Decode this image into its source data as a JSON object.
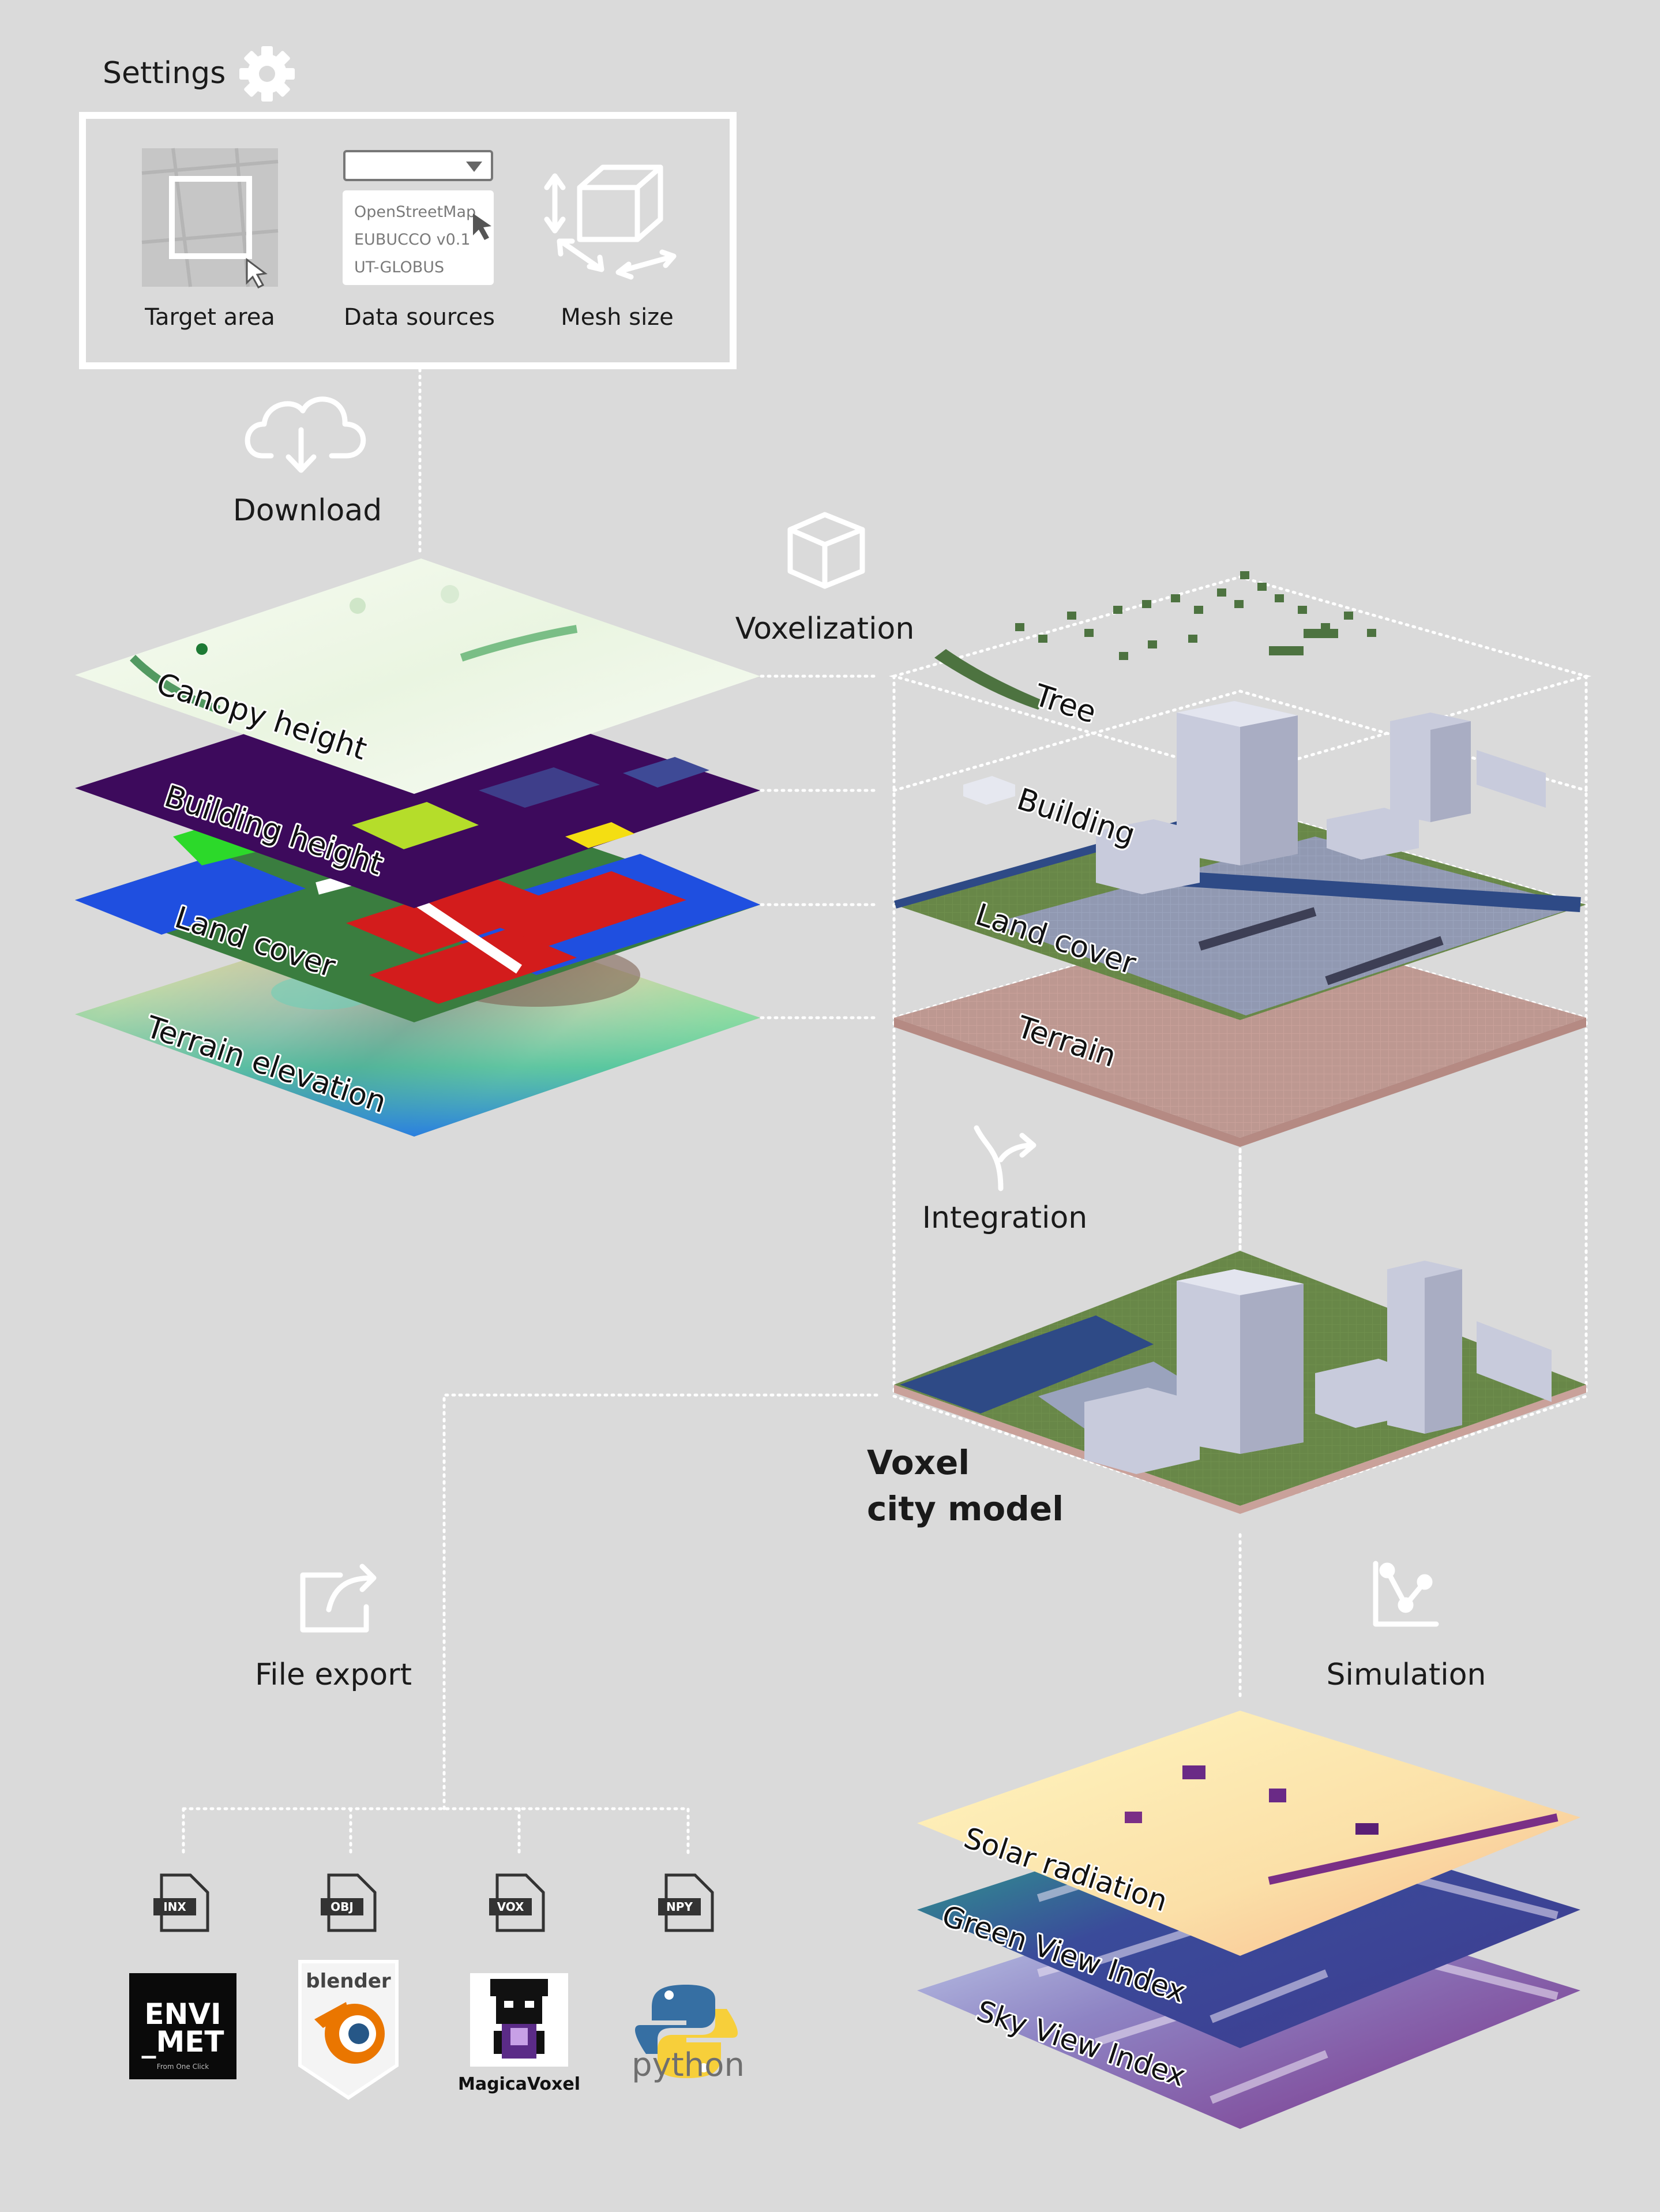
{
  "settings": {
    "title": "Settings",
    "items": [
      {
        "label": "Target area"
      },
      {
        "label": "Data sources",
        "options": [
          "OpenStreetMap",
          "EUBUCCO v0.1",
          "UT-GLOBUS"
        ]
      },
      {
        "label": "Mesh size"
      }
    ]
  },
  "steps": {
    "download": "Download",
    "voxelization": "Voxelization",
    "integration": "Integration",
    "file_export": "File export",
    "simulation": "Simulation"
  },
  "input_layers": [
    "Canopy height",
    "Building height",
    "Land cover",
    "Terrain elevation"
  ],
  "voxel_layers": [
    "Tree",
    "Building",
    "Land cover",
    "Terrain"
  ],
  "model": {
    "line1": "Voxel",
    "line2": "city model"
  },
  "exports": [
    {
      "ext": "INX",
      "app": "ENVI-MET",
      "logo_l1": "ENVI",
      "logo_l2": "_MET",
      "logo_tag": "From One Click"
    },
    {
      "ext": "OBJ",
      "app": "blender",
      "logo_l1": "blender"
    },
    {
      "ext": "VOX",
      "app": "MagicaVoxel",
      "logo_l1": "MagicaVoxel"
    },
    {
      "ext": "NPY",
      "app": "python",
      "logo_l1": "python"
    }
  ],
  "simulation_layers": [
    "Solar radiation",
    "Green View Index",
    "Sky View Index"
  ],
  "colors": {
    "background": "#dadada",
    "line": "#ffffff",
    "building_height": "#3d0a5c",
    "landcover_red": "#d31c1c",
    "landcover_blue": "#1f4fe0",
    "landcover_green": "#1d7a34",
    "terrain_voxel": "#c9a19a",
    "building_voxel": "#c8cbdc",
    "tree_voxel": "#4d7340"
  }
}
